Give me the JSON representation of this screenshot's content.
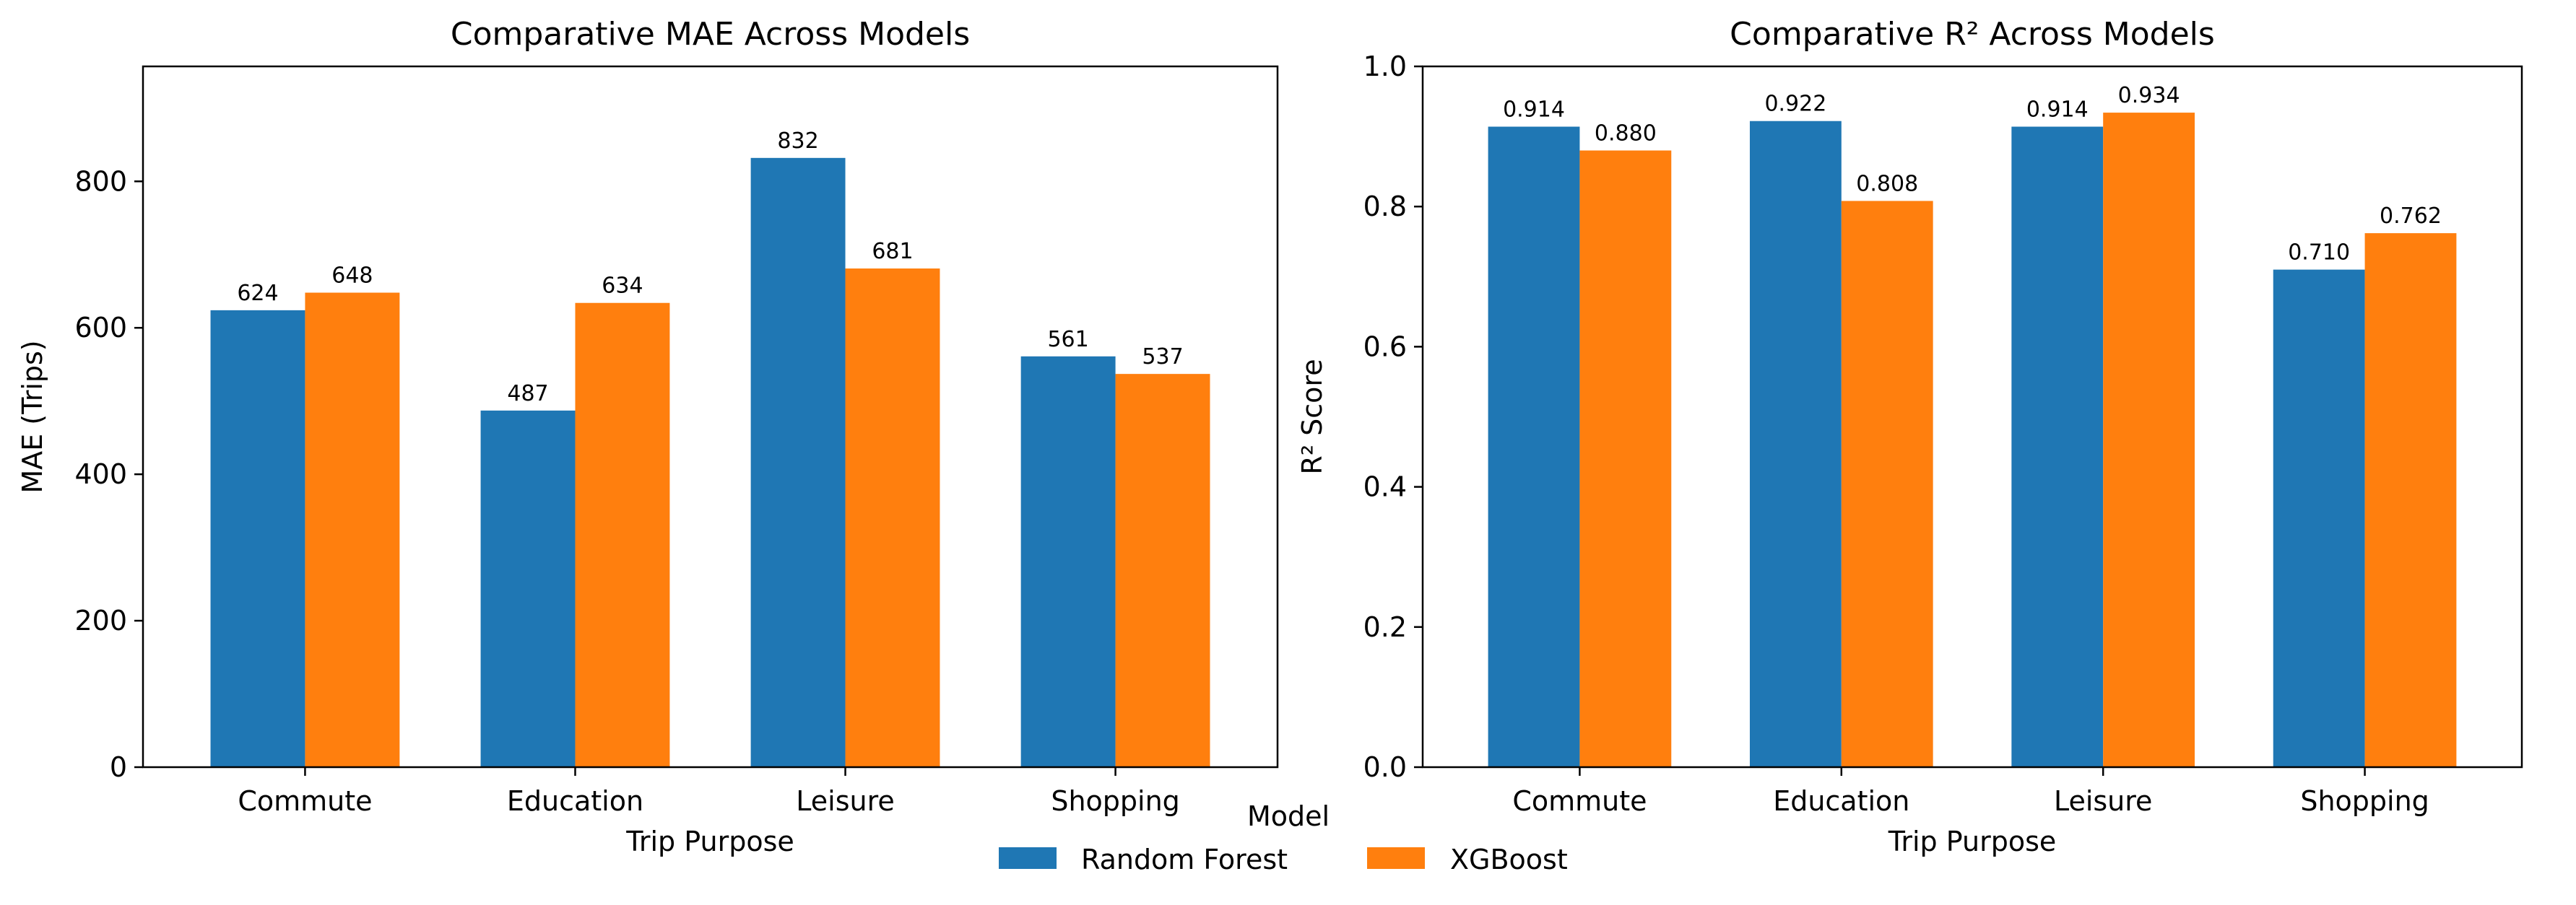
{
  "chart_data": [
    {
      "type": "bar",
      "title": "Comparative MAE Across Models",
      "xlabel": "Trip Purpose",
      "ylabel": "MAE (Trips)",
      "categories": [
        "Commute",
        "Education",
        "Leisure",
        "Shopping"
      ],
      "ylim": [
        0,
        957
      ],
      "yticks": [
        0,
        200,
        400,
        600,
        800
      ],
      "ytick_labels": [
        "0",
        "200",
        "400",
        "600",
        "800"
      ],
      "grid": false,
      "series": [
        {
          "name": "Random Forest",
          "values": [
            624,
            487,
            832,
            561
          ],
          "labels": [
            "624",
            "487",
            "832",
            "561"
          ]
        },
        {
          "name": "XGBoost",
          "values": [
            648,
            634,
            681,
            537
          ],
          "labels": [
            "648",
            "634",
            "681",
            "537"
          ]
        }
      ]
    },
    {
      "type": "bar",
      "title": "Comparative R² Across Models",
      "xlabel": "Trip Purpose",
      "ylabel": "R² Score",
      "categories": [
        "Commute",
        "Education",
        "Leisure",
        "Shopping"
      ],
      "ylim": [
        0,
        1.0
      ],
      "yticks": [
        0,
        0.2,
        0.4,
        0.6,
        0.8,
        1.0
      ],
      "ytick_labels": [
        "0.0",
        "0.2",
        "0.4",
        "0.6",
        "0.8",
        "1.0"
      ],
      "grid": false,
      "series": [
        {
          "name": "Random Forest",
          "values": [
            0.914,
            0.922,
            0.914,
            0.71
          ],
          "labels": [
            "0.914",
            "0.922",
            "0.914",
            "0.710"
          ]
        },
        {
          "name": "XGBoost",
          "values": [
            0.88,
            0.808,
            0.934,
            0.762
          ],
          "labels": [
            "0.880",
            "0.808",
            "0.934",
            "0.762"
          ]
        }
      ]
    }
  ],
  "legend": {
    "title": "Model",
    "placement": "bottom-center",
    "items": [
      {
        "label": "Random Forest",
        "color": "#1f77b4"
      },
      {
        "label": "XGBoost",
        "color": "#ff7f0e"
      }
    ]
  }
}
